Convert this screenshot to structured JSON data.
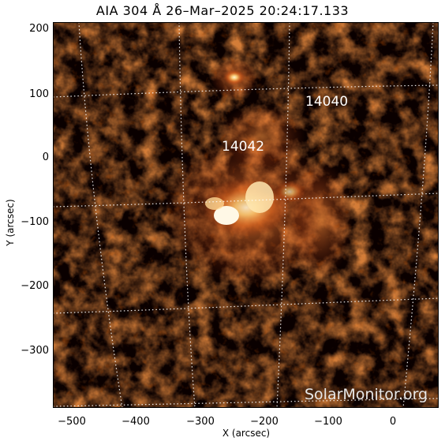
{
  "header": {
    "title": "AIA 304 Å 26–Mar–2025 20:24:17.133"
  },
  "axes": {
    "xlabel": "X (arcsec)",
    "ylabel": "Y (arcsec)",
    "xlim": [
      -530,
      70
    ],
    "ylim": [
      -390,
      210
    ],
    "xticks": [
      "−500",
      "−400",
      "−300",
      "−200",
      "−100",
      "0"
    ],
    "yticks": [
      "200",
      "100",
      "0",
      "−100",
      "−200",
      "−300"
    ]
  },
  "regions": [
    {
      "label": "14040",
      "x": -115,
      "y": 90
    },
    {
      "label": "14042",
      "x": -235,
      "y": 20
    }
  ],
  "watermark": "SolarMonitor.org",
  "colors": {
    "background": "#0a0000",
    "emission": "#d24a12",
    "bright": "#ffe9a8",
    "grid": "#ffffff"
  }
}
